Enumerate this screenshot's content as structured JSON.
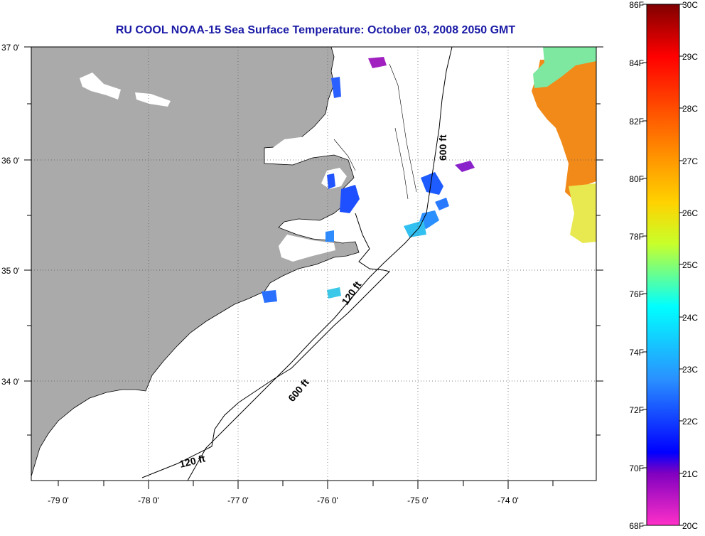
{
  "title": "RU COOL  NOAA-15  Sea Surface Temperature:  October 03, 2008 2050 GMT",
  "latitude_labels": [
    "37 0'",
    "36 0'",
    "35 0'",
    "34 0'"
  ],
  "longitude_labels": [
    "-79 0'",
    "-78 0'",
    "-77 0'",
    "-76 0'",
    "-75 0'",
    "-74 0'"
  ],
  "contours": {
    "label_600_ft_north": "600 ft",
    "label_120_ft_mid": "120 ft",
    "label_600_ft_south": "600 ft",
    "label_120_ft_south": "120 ft"
  },
  "colorbar": {
    "fahrenheit": [
      "86F",
      "84F",
      "82F",
      "80F",
      "78F",
      "76F",
      "74F",
      "72F",
      "70F",
      "68F"
    ],
    "celsius": [
      "30C",
      "29C",
      "28C",
      "27C",
      "26C",
      "25C",
      "24C",
      "23C",
      "22C",
      "21C",
      "20C"
    ]
  },
  "colors": {
    "land": "#aaaaaa",
    "title": "#1a1aa6",
    "warm_water": "#f28a1a"
  }
}
